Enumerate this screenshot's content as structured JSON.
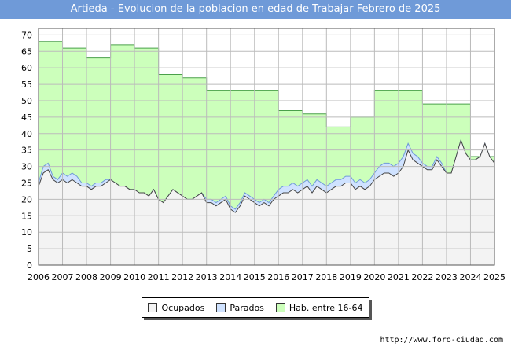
{
  "title": "Artieda - Evolucion de la poblacion en edad de Trabajar Febrero de 2025",
  "footer": "http://www.foro-ciudad.com",
  "colors": {
    "title_bg": "#6f9ad8",
    "hab_fill": "#ccffbb",
    "hab_line": "#4aa04a",
    "parados_fill": "#cfe2ff",
    "parados_line": "#6f9ad8",
    "ocupados_fill": "#f3f3f3",
    "ocupados_line": "#444444",
    "grid": "#bbbbbb"
  },
  "chart_data": {
    "type": "area",
    "title": "Artieda - Evolucion de la poblacion en edad de Trabajar Febrero de 2025",
    "x_ticks": [
      "2006",
      "2007",
      "2008",
      "2009",
      "2010",
      "2011",
      "2012",
      "2013",
      "2014",
      "2015",
      "2016",
      "2017",
      "2018",
      "2019",
      "2020",
      "2021",
      "2022",
      "2023",
      "2024",
      "2025"
    ],
    "ylim": [
      0,
      72
    ],
    "y_ticks": [
      0,
      5,
      10,
      15,
      20,
      25,
      30,
      35,
      40,
      45,
      50,
      55,
      60,
      65,
      70
    ],
    "legend": [
      {
        "name": "Ocupados",
        "swatch": "ocupados"
      },
      {
        "name": "Parados",
        "swatch": "parados"
      },
      {
        "name": "Hab. entre 16-64",
        "swatch": "hab"
      }
    ],
    "hab_16_64": {
      "years": [
        2006,
        2007,
        2008,
        2009,
        2010,
        2011,
        2012,
        2013,
        2014,
        2015,
        2016,
        2017,
        2018,
        2019,
        2020,
        2021,
        2022,
        2023,
        2024
      ],
      "values": [
        68,
        66,
        63,
        67,
        66,
        58,
        57,
        53,
        53,
        53,
        47,
        46,
        42,
        45,
        53,
        53,
        49,
        49,
        33
      ]
    },
    "ocupados": {
      "x": [
        2006.0,
        2006.2,
        2006.4,
        2006.6,
        2006.8,
        2007.0,
        2007.2,
        2007.4,
        2007.6,
        2007.8,
        2008.0,
        2008.2,
        2008.4,
        2008.6,
        2008.8,
        2009.0,
        2009.2,
        2009.4,
        2009.6,
        2009.8,
        2010.0,
        2010.2,
        2010.4,
        2010.6,
        2010.8,
        2011.0,
        2011.2,
        2011.4,
        2011.6,
        2011.8,
        2012.0,
        2012.2,
        2012.4,
        2012.6,
        2012.8,
        2013.0,
        2013.2,
        2013.4,
        2013.6,
        2013.8,
        2014.0,
        2014.2,
        2014.4,
        2014.6,
        2014.8,
        2015.0,
        2015.2,
        2015.4,
        2015.6,
        2015.8,
        2016.0,
        2016.2,
        2016.4,
        2016.6,
        2016.8,
        2017.0,
        2017.2,
        2017.4,
        2017.6,
        2017.8,
        2018.0,
        2018.2,
        2018.4,
        2018.6,
        2018.8,
        2019.0,
        2019.2,
        2019.4,
        2019.6,
        2019.8,
        2020.0,
        2020.2,
        2020.4,
        2020.6,
        2020.8,
        2021.0,
        2021.2,
        2021.4,
        2021.6,
        2021.8,
        2022.0,
        2022.2,
        2022.4,
        2022.6,
        2022.8,
        2023.0,
        2023.2,
        2023.4,
        2023.6,
        2023.8,
        2024.0,
        2024.2,
        2024.4,
        2024.6,
        2024.8,
        2025.0
      ],
      "values": [
        24,
        28,
        29,
        26,
        25,
        26,
        25,
        26,
        25,
        24,
        24,
        23,
        24,
        24,
        25,
        26,
        25,
        24,
        24,
        23,
        23,
        22,
        22,
        21,
        23,
        20,
        19,
        21,
        23,
        22,
        21,
        20,
        20,
        21,
        22,
        19,
        19,
        18,
        19,
        20,
        17,
        16,
        18,
        21,
        20,
        19,
        18,
        19,
        18,
        20,
        21,
        22,
        22,
        23,
        22,
        23,
        24,
        22,
        24,
        23,
        22,
        23,
        24,
        24,
        25,
        25,
        23,
        24,
        23,
        24,
        26,
        27,
        28,
        28,
        27,
        28,
        30,
        35,
        32,
        31,
        30,
        29,
        29,
        32,
        30,
        28,
        28,
        33,
        38,
        34,
        32,
        32,
        33,
        37,
        33,
        31
      ]
    },
    "parados": {
      "x": [
        2006.0,
        2006.2,
        2006.4,
        2006.6,
        2006.8,
        2007.0,
        2007.2,
        2007.4,
        2007.6,
        2007.8,
        2008.0,
        2008.2,
        2008.4,
        2008.6,
        2008.8,
        2009.0,
        2009.2,
        2009.4,
        2009.6,
        2009.8,
        2010.0,
        2010.2,
        2010.4,
        2010.6,
        2010.8,
        2011.0,
        2011.2,
        2011.4,
        2011.6,
        2011.8,
        2012.0,
        2012.2,
        2012.4,
        2012.6,
        2012.8,
        2013.0,
        2013.2,
        2013.4,
        2013.6,
        2013.8,
        2014.0,
        2014.2,
        2014.4,
        2014.6,
        2014.8,
        2015.0,
        2015.2,
        2015.4,
        2015.6,
        2015.8,
        2016.0,
        2016.2,
        2016.4,
        2016.6,
        2016.8,
        2017.0,
        2017.2,
        2017.4,
        2017.6,
        2017.8,
        2018.0,
        2018.2,
        2018.4,
        2018.6,
        2018.8,
        2019.0,
        2019.2,
        2019.4,
        2019.6,
        2019.8,
        2020.0,
        2020.2,
        2020.4,
        2020.6,
        2020.8,
        2021.0,
        2021.2,
        2021.4,
        2021.6,
        2021.8,
        2022.0,
        2022.2,
        2022.4,
        2022.6,
        2022.8,
        2023.0,
        2023.2,
        2023.4,
        2023.6,
        2023.8,
        2024.0,
        2024.2,
        2024.4,
        2024.6,
        2024.8,
        2025.0
      ],
      "values": [
        1,
        2,
        2,
        1,
        1,
        2,
        2,
        2,
        2,
        1,
        1,
        1,
        1,
        1,
        1,
        0,
        0,
        0,
        0,
        0,
        0,
        0,
        0,
        0,
        0,
        0,
        0,
        0,
        0,
        0,
        0,
        0,
        0,
        0,
        0,
        1,
        1,
        1,
        1,
        1,
        1,
        1,
        1,
        1,
        1,
        1,
        1,
        1,
        1,
        1,
        2,
        2,
        2,
        2,
        2,
        2,
        2,
        2,
        2,
        2,
        2,
        2,
        2,
        2,
        2,
        2,
        2,
        2,
        2,
        2,
        2,
        3,
        3,
        3,
        3,
        3,
        3,
        2,
        2,
        2,
        1,
        1,
        1,
        1,
        1,
        0,
        0,
        0,
        0,
        0,
        0,
        0,
        0,
        0,
        0,
        0
      ]
    }
  }
}
